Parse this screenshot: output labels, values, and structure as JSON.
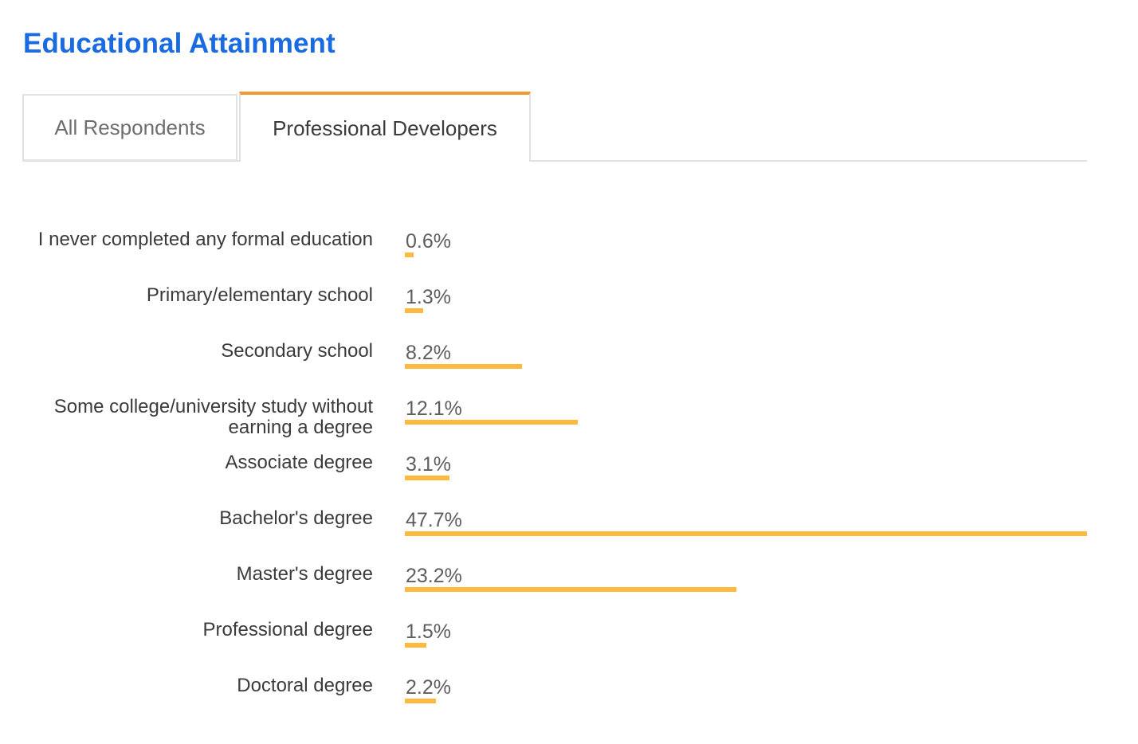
{
  "page_title": "Educational Attainment",
  "tabs": [
    {
      "label": "All Respondents",
      "active": false
    },
    {
      "label": "Professional Developers",
      "active": true
    }
  ],
  "colors": {
    "title": "#1a6ae0",
    "active_tab_accent": "#f49a30",
    "bar": "#ffb93f"
  },
  "chart_data": {
    "type": "bar",
    "orientation": "horizontal",
    "title": "",
    "categories": [
      "I never completed any formal education",
      "Primary/elementary school",
      "Secondary school",
      "Some college/university study without earning a degree",
      "Associate degree",
      "Bachelor's degree",
      "Master's degree",
      "Professional degree",
      "Doctoral degree"
    ],
    "values": [
      0.6,
      1.3,
      8.2,
      12.1,
      3.1,
      47.7,
      23.2,
      1.5,
      2.2
    ],
    "value_labels": [
      "0.6%",
      "1.3%",
      "8.2%",
      "12.1%",
      "3.1%",
      "47.7%",
      "23.2%",
      "1.5%",
      "2.2%"
    ],
    "unit": "%",
    "xlim": [
      0,
      47.7
    ],
    "grid": false,
    "legend": "none"
  }
}
